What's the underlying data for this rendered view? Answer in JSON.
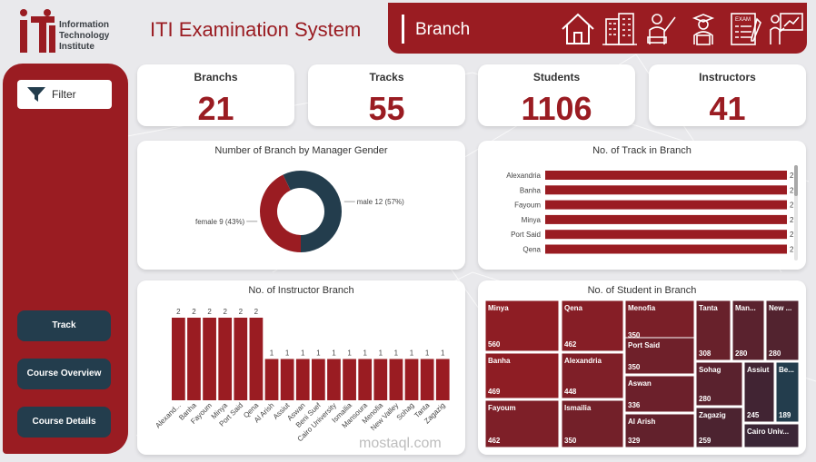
{
  "header": {
    "logo_lines": [
      "Information",
      "Technology",
      "Institute"
    ],
    "app_title": "ITI Examination System",
    "page_name": "Branch",
    "nav_icons": [
      "home-icon",
      "building-icon",
      "instructor-icon",
      "student-icon",
      "exam-icon",
      "presentation-icon"
    ]
  },
  "sidebar": {
    "filter_label": "Filter",
    "buttons": [
      "Track",
      "Course Overview",
      "Course Details"
    ]
  },
  "kpis": [
    {
      "label": "Branchs",
      "value": "21"
    },
    {
      "label": "Tracks",
      "value": "55"
    },
    {
      "label": "Students",
      "value": "1106"
    },
    {
      "label": "Instructors",
      "value": "41"
    }
  ],
  "watermark": "mostaql.com",
  "colors": {
    "accent": "#9a1c22",
    "dark": "#233d4d",
    "background": "#e9e9ec"
  },
  "chart_data": [
    {
      "type": "pie",
      "title": "Number of Branch by Manager Gender",
      "slices": [
        {
          "name": "female",
          "value": 9,
          "label": "female 9 (43%)",
          "color": "#9a1c22"
        },
        {
          "name": "male",
          "value": 12,
          "label": "male 12 (57%)",
          "color": "#233d4d"
        }
      ]
    },
    {
      "type": "bar",
      "orientation": "horizontal",
      "title": "No. of Track in Branch",
      "categories": [
        "Alexandria",
        "Banha",
        "Fayoum",
        "Minya",
        "Port Said",
        "Qena"
      ],
      "values": [
        2,
        2,
        2,
        2,
        2,
        2
      ],
      "color": "#9a1c22"
    },
    {
      "type": "bar",
      "title": "No. of Instructor Branch",
      "categories": [
        "Alexand...",
        "Banha",
        "Fayoum",
        "Minya",
        "Port Said",
        "Qena",
        "Al Arish",
        "Assiut",
        "Aswan",
        "Beni Suef",
        "Cairo University",
        "Ismailia",
        "Mansoura",
        "Menofia",
        "New Valley",
        "Sohag",
        "Tanta",
        "Zagazig"
      ],
      "values": [
        2,
        2,
        2,
        2,
        2,
        2,
        1,
        1,
        1,
        1,
        1,
        1,
        1,
        1,
        1,
        1,
        1,
        1
      ],
      "color": "#9a1c22"
    },
    {
      "type": "heatmap",
      "subtype": "treemap",
      "title": "No. of Student in Branch",
      "items": [
        {
          "name": "Minya",
          "value": 560,
          "value_label": "560"
        },
        {
          "name": "Banha",
          "value": 469,
          "value_label": "469"
        },
        {
          "name": "Fayoum",
          "value": 462,
          "value_label": "462"
        },
        {
          "name": "Qena",
          "value": 462,
          "value_label": "462"
        },
        {
          "name": "Alexandria",
          "value": 448,
          "value_label": "448"
        },
        {
          "name": "Ismailia",
          "value": 350,
          "value_label": "350"
        },
        {
          "name": "Menofia",
          "value": 350,
          "value_label": "350"
        },
        {
          "name": "Port Said",
          "value": 350,
          "value_label": "350"
        },
        {
          "name": "Aswan",
          "value": 336,
          "value_label": "336"
        },
        {
          "name": "Al Arish",
          "value": 329,
          "value_label": "329"
        },
        {
          "name": "Tanta",
          "value": 308,
          "value_label": "308"
        },
        {
          "name": "Man...",
          "value": 280,
          "value_label": "280"
        },
        {
          "name": "New ...",
          "value": 280,
          "value_label": "280"
        },
        {
          "name": "Sohag",
          "value": 280,
          "value_label": "280"
        },
        {
          "name": "Zagazig",
          "value": 259,
          "value_label": "259"
        },
        {
          "name": "Assiut",
          "value": 245,
          "value_label": "245"
        },
        {
          "name": "Be...",
          "value": 189,
          "value_label": "189"
        },
        {
          "name": "Cairo Univ...",
          "value": null,
          "value_label": ""
        }
      ]
    }
  ]
}
